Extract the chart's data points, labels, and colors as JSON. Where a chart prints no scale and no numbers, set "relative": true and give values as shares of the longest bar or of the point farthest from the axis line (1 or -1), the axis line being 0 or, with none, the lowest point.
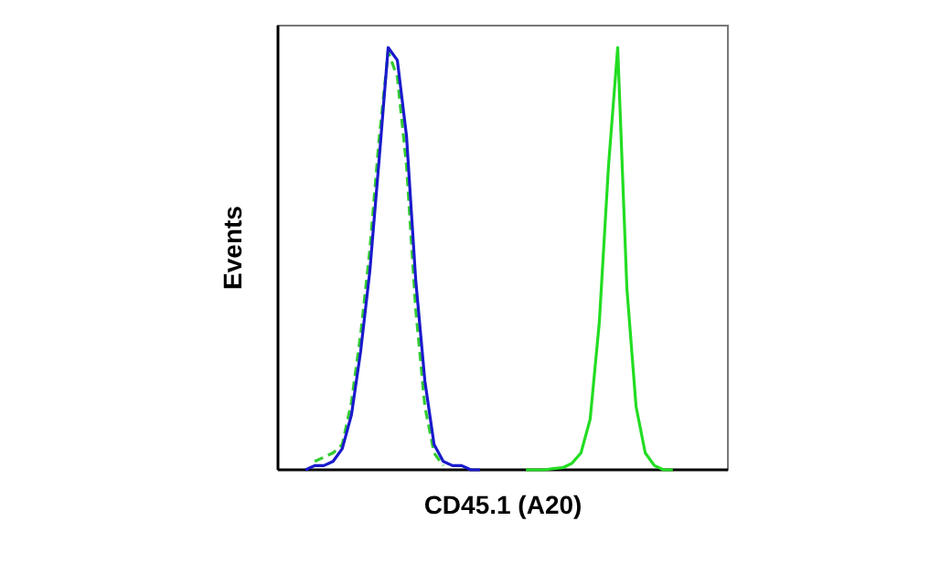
{
  "chart_data": {
    "type": "line",
    "relative": true,
    "xlabel": "CD45.1 (A20)",
    "ylabel": "Events",
    "categories": [
      null,
      null,
      null,
      null,
      null,
      null,
      null,
      null,
      null,
      null,
      null,
      null,
      null,
      null,
      null,
      null,
      null,
      null,
      null,
      null,
      null,
      null,
      null,
      null,
      null,
      null,
      null,
      null,
      null,
      null,
      null,
      null,
      null,
      null,
      null,
      null,
      null,
      null,
      null,
      null,
      null,
      null,
      null,
      null,
      null,
      null,
      null,
      null,
      null,
      null
    ],
    "series": [
      {
        "color": "#33cc33",
        "line_style": "dashed",
        "values": [
          null,
          null,
          null,
          null,
          0.02,
          0.03,
          0.04,
          0.06,
          0.16,
          0.32,
          0.52,
          0.78,
          0.99,
          0.93,
          0.72,
          0.38,
          0.15,
          0.04,
          0.01,
          null,
          null,
          null,
          null,
          null,
          null,
          null,
          null,
          null,
          null,
          null,
          null,
          null,
          null,
          null,
          null,
          null,
          null,
          null,
          null,
          null,
          null,
          null,
          null,
          null,
          null,
          null,
          null,
          null,
          null,
          null
        ]
      },
      {
        "color": "#1a1acc",
        "line_style": "solid",
        "values": [
          null,
          null,
          null,
          0,
          0.01,
          0.01,
          0.02,
          0.05,
          0.13,
          0.28,
          0.47,
          0.73,
          1,
          0.97,
          0.79,
          0.45,
          0.21,
          0.06,
          0.02,
          0.01,
          0.01,
          0,
          0,
          null,
          null,
          null,
          null,
          null,
          null,
          null,
          null,
          null,
          null,
          null,
          null,
          null,
          null,
          null,
          null,
          null,
          null,
          null,
          null,
          null,
          null,
          null,
          null,
          null,
          null,
          null
        ]
      },
      {
        "color": "#22dd22",
        "line_style": "solid",
        "values": [
          null,
          null,
          null,
          null,
          null,
          null,
          null,
          null,
          null,
          null,
          null,
          null,
          null,
          null,
          null,
          null,
          null,
          null,
          null,
          null,
          null,
          null,
          null,
          null,
          null,
          null,
          null,
          0,
          0,
          0,
          0.003,
          0.005,
          0.015,
          0.04,
          0.12,
          0.35,
          0.72,
          1,
          0.43,
          0.15,
          0.04,
          0.01,
          0,
          0,
          null,
          null,
          null,
          null,
          null,
          null
        ]
      }
    ]
  }
}
